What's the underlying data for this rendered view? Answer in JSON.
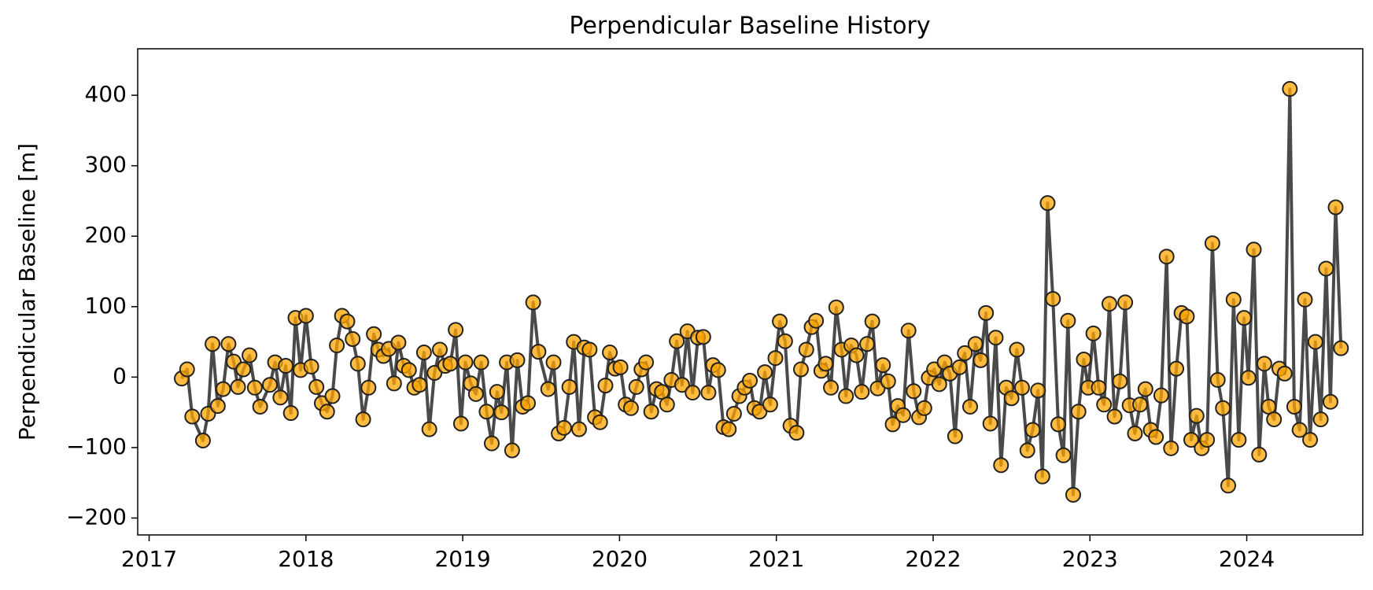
{
  "chart_data": {
    "type": "line",
    "title": "Perpendicular Baseline History",
    "ylabel": "Perpendicular Baseline [m]",
    "line_color": "#404040",
    "marker_color": "#ffa500",
    "marker_edge": "#222222",
    "grid": false,
    "xlim": [
      2016.927,
      2024.74
    ],
    "ylim": [
      -224,
      466
    ],
    "xticks": [
      2017,
      2018,
      2019,
      2020,
      2021,
      2022,
      2023,
      2024
    ],
    "yticks": [
      {
        "value": -200,
        "label": "−200"
      },
      {
        "value": -100,
        "label": "−100"
      },
      0,
      100,
      200,
      300,
      400
    ],
    "x": [
      2017.208,
      2017.242,
      2017.275,
      2017.343,
      2017.376,
      2017.404,
      2017.438,
      2017.472,
      2017.506,
      2017.539,
      2017.567,
      2017.601,
      2017.64,
      2017.674,
      2017.708,
      2017.77,
      2017.803,
      2017.837,
      2017.871,
      2017.904,
      2017.933,
      2017.966,
      2018.0,
      2018.034,
      2018.067,
      2018.101,
      2018.135,
      2018.169,
      2018.197,
      2018.23,
      2018.264,
      2018.298,
      2018.331,
      2018.365,
      2018.399,
      2018.433,
      2018.461,
      2018.494,
      2018.528,
      2018.562,
      2018.59,
      2018.624,
      2018.657,
      2018.691,
      2018.725,
      2018.753,
      2018.787,
      2018.82,
      2018.854,
      2018.888,
      2018.921,
      2018.955,
      2018.989,
      2019.017,
      2019.051,
      2019.084,
      2019.118,
      2019.152,
      2019.185,
      2019.219,
      2019.247,
      2019.281,
      2019.315,
      2019.348,
      2019.382,
      2019.416,
      2019.449,
      2019.483,
      2019.545,
      2019.579,
      2019.612,
      2019.646,
      2019.68,
      2019.708,
      2019.742,
      2019.775,
      2019.809,
      2019.843,
      2019.876,
      2019.91,
      2019.938,
      2019.972,
      2020.006,
      2020.039,
      2020.073,
      2020.107,
      2020.14,
      2020.169,
      2020.202,
      2020.236,
      2020.27,
      2020.303,
      2020.331,
      2020.365,
      2020.399,
      2020.433,
      2020.466,
      2020.5,
      2020.534,
      2020.567,
      2020.596,
      2020.629,
      2020.663,
      2020.697,
      2020.73,
      2020.764,
      2020.798,
      2020.831,
      2020.86,
      2020.893,
      2020.927,
      2020.961,
      2020.994,
      2021.022,
      2021.056,
      2021.09,
      2021.129,
      2021.157,
      2021.191,
      2021.225,
      2021.253,
      2021.287,
      2021.315,
      2021.348,
      2021.382,
      2021.416,
      2021.444,
      2021.478,
      2021.511,
      2021.545,
      2021.579,
      2021.612,
      2021.646,
      2021.68,
      2021.713,
      2021.742,
      2021.775,
      2021.809,
      2021.843,
      2021.876,
      2021.91,
      2021.944,
      2021.972,
      2022.006,
      2022.039,
      2022.073,
      2022.107,
      2022.14,
      2022.169,
      2022.202,
      2022.236,
      2022.27,
      2022.303,
      2022.337,
      2022.365,
      2022.399,
      2022.433,
      2022.466,
      2022.5,
      2022.534,
      2022.567,
      2022.601,
      2022.635,
      2022.669,
      2022.697,
      2022.73,
      2022.764,
      2022.798,
      2022.831,
      2022.86,
      2022.893,
      2022.927,
      2022.961,
      2022.989,
      2023.022,
      2023.056,
      2023.09,
      2023.124,
      2023.157,
      2023.191,
      2023.225,
      2023.253,
      2023.287,
      2023.32,
      2023.354,
      2023.388,
      2023.421,
      2023.455,
      2023.489,
      2023.517,
      2023.551,
      2023.584,
      2023.618,
      2023.646,
      2023.68,
      2023.713,
      2023.747,
      2023.781,
      2023.815,
      2023.848,
      2023.882,
      2023.916,
      2023.949,
      2023.983,
      2024.011,
      2024.045,
      2024.079,
      2024.112,
      2024.14,
      2024.174,
      2024.208,
      2024.242,
      2024.275,
      2024.303,
      2024.337,
      2024.371,
      2024.404,
      2024.438,
      2024.472,
      2024.506,
      2024.534,
      2024.567,
      2024.601
    ],
    "values": [
      -2,
      11,
      -56,
      -90,
      -52,
      47,
      -41,
      -17,
      47,
      22,
      -14,
      11,
      31,
      -15,
      -42,
      -11,
      21,
      -29,
      16,
      -51,
      84,
      10,
      87,
      15,
      -14,
      -37,
      -49,
      -27,
      45,
      87,
      79,
      54,
      19,
      -60,
      -15,
      61,
      39,
      30,
      40,
      -9,
      49,
      16,
      10,
      -15,
      -11,
      35,
      -74,
      6,
      39,
      16,
      19,
      67,
      -66,
      21,
      -9,
      -24,
      21,
      -49,
      -94,
      -21,
      -50,
      21,
      -104,
      24,
      -42,
      -37,
      106,
      36,
      -17,
      21,
      -80,
      -72,
      -14,
      50,
      -74,
      42,
      39,
      -57,
      -64,
      -12,
      35,
      12,
      14,
      -39,
      -44,
      -14,
      11,
      21,
      -49,
      -17,
      -21,
      -39,
      -4,
      51,
      -11,
      65,
      -22,
      56,
      57,
      -22,
      17,
      10,
      -71,
      -74,
      -52,
      -27,
      -15,
      -5,
      -44,
      -49,
      7,
      -39,
      27,
      79,
      51,
      -69,
      -79,
      11,
      39,
      71,
      80,
      9,
      19,
      -15,
      99,
      39,
      -27,
      45,
      31,
      -21,
      47,
      79,
      -16,
      17,
      -6,
      -67,
      -41,
      -54,
      66,
      -20,
      -57,
      -44,
      -1,
      11,
      -10,
      21,
      5,
      -84,
      14,
      34,
      -42,
      47,
      24,
      91,
      -66,
      56,
      -125,
      -15,
      -30,
      39,
      -15,
      -104,
      -75,
      -19,
      -141,
      247,
      111,
      -67,
      -111,
      80,
      -167,
      -49,
      25,
      -15,
      62,
      -15,
      -39,
      104,
      -56,
      -6,
      106,
      -40,
      -80,
      -39,
      -17,
      -75,
      -85,
      -26,
      171,
      -101,
      12,
      91,
      86,
      -89,
      -55,
      -101,
      -89,
      190,
      -4,
      -44,
      -154,
      110,
      -89,
      84,
      -1,
      181,
      -110,
      19,
      -42,
      -60,
      12,
      5,
      409,
      -42,
      -75,
      110,
      -89,
      50,
      -60,
      154,
      -35,
      241,
      41
    ]
  }
}
